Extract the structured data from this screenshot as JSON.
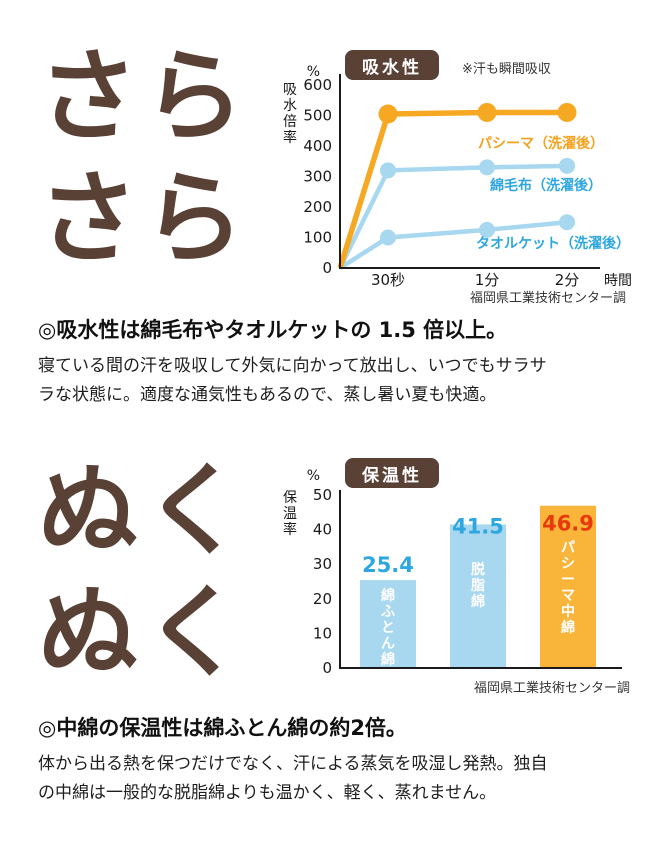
{
  "colors": {
    "brown": "#5a4136",
    "orange": "#f7a823",
    "orange_bar": "#f9b53a",
    "light_blue": "#a8d7f0",
    "blue_text": "#2ea7e0",
    "red_text": "#e8380d",
    "ink": "#1a1a1a"
  },
  "section1": {
    "big_line1": "さら",
    "big_line2": "さら",
    "heading": "◎吸水性は綿毛布やタオルケットの 1.5 倍以上。",
    "body": "寝ている間の汗を吸収して外気に向かって放出し、いつでもサラサラな状態に。適度な通気性もあるので、蒸し暑い夏も快適。"
  },
  "section2": {
    "big_line1": "ぬく",
    "big_line2": "ぬく",
    "heading": "◎中綿の保温性は綿ふとん綿の約2倍。",
    "body": "体から出る熱を保つだけでなく、汗による蒸気を吸湿し発熱。独自の中綿は一般的な脱脂綿よりも温かく、軽く、蒸れません。"
  },
  "chart_data": [
    {
      "type": "line",
      "title": "吸水性",
      "note": "※汗も瞬間吸収",
      "unit": "%",
      "ylabel": "吸水倍率",
      "xlabel": "時間",
      "x": [
        "30秒",
        "1分",
        "2分"
      ],
      "ylim": [
        0,
        600
      ],
      "yticks": [
        0,
        100,
        200,
        300,
        400,
        500,
        600
      ],
      "grid": false,
      "legend_position": "inline-right",
      "series": [
        {
          "name": "パシーマ（洗濯後）",
          "values": [
            505,
            510,
            510
          ],
          "color": "#f7a823",
          "label_color": "#f5a11c"
        },
        {
          "name": "綿毛布（洗濯後）",
          "values": [
            320,
            330,
            335
          ],
          "color": "#a8d7f0",
          "label_color": "#2ea7e0"
        },
        {
          "name": "タオルケット（洗濯後）",
          "values": [
            100,
            125,
            150
          ],
          "color": "#a8d7f0",
          "label_color": "#2ea7e0"
        }
      ],
      "source": "福岡県工業技術センター調"
    },
    {
      "type": "bar",
      "title": "保温性",
      "unit": "%",
      "ylabel": "保温率",
      "ylim": [
        0,
        50
      ],
      "yticks": [
        0,
        10,
        20,
        30,
        40,
        50
      ],
      "grid": false,
      "categories": [
        "綿ふとん綿",
        "脱脂綿",
        "パシーマ中綿"
      ],
      "values": [
        25.4,
        41.5,
        46.9
      ],
      "bar_colors": [
        "#a8d7f0",
        "#a8d7f0",
        "#f9b53a"
      ],
      "value_colors": [
        "#2ea7e0",
        "#2ea7e0",
        "#e8380d"
      ],
      "category_label_color": "#ffffff",
      "source": "福岡県工業技術センター調"
    }
  ]
}
